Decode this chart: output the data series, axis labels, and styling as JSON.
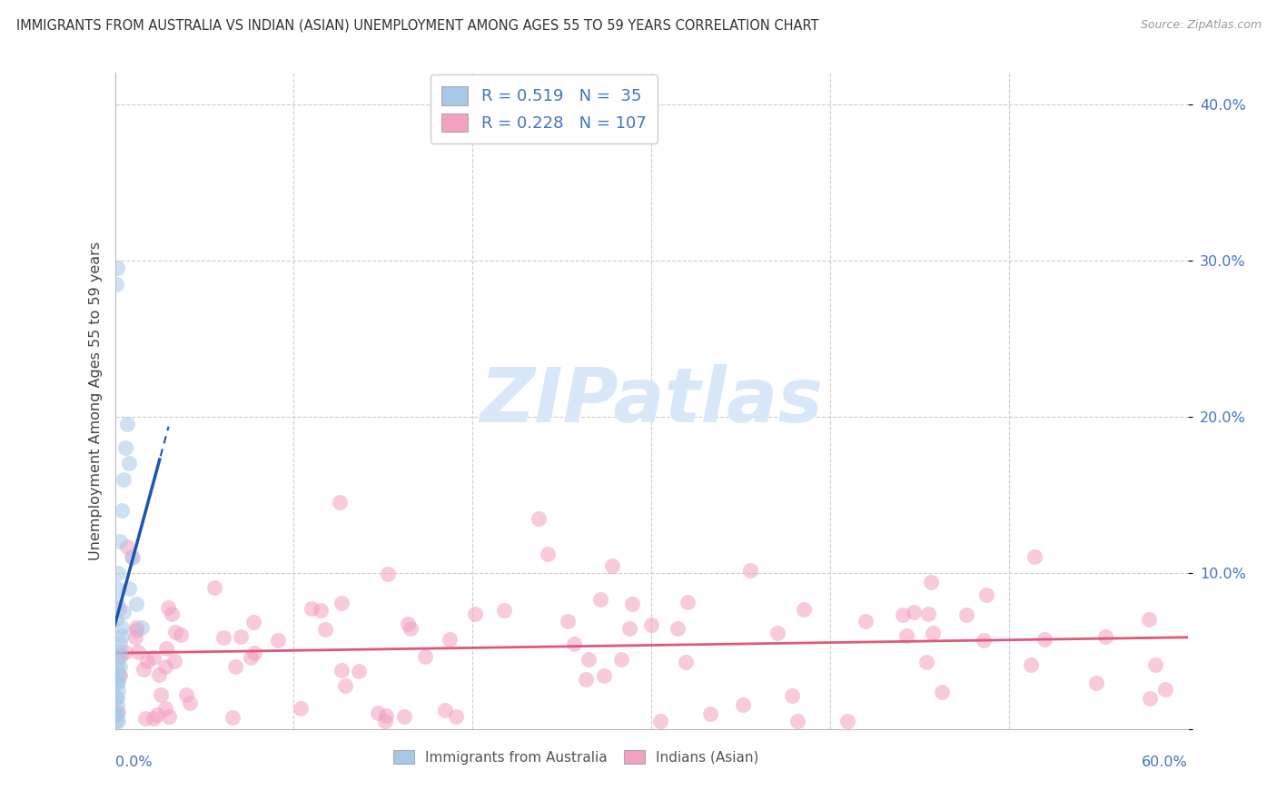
{
  "title": "IMMIGRANTS FROM AUSTRALIA VS INDIAN (ASIAN) UNEMPLOYMENT AMONG AGES 55 TO 59 YEARS CORRELATION CHART",
  "source": "Source: ZipAtlas.com",
  "ylabel": "Unemployment Among Ages 55 to 59 years",
  "legend1_R": "0.519",
  "legend1_N": "35",
  "legend2_R": "0.228",
  "legend2_N": "107",
  "blue_scatter_color": "#a8c8e8",
  "pink_scatter_color": "#f4a0c0",
  "blue_line_color": "#1a56b0",
  "pink_line_color": "#e05878",
  "tick_color": "#4472c4",
  "title_color": "#333333",
  "watermark_color": "#d8e8f8",
  "background": "#ffffff",
  "xlim": [
    0.0,
    0.6
  ],
  "ylim": [
    0.0,
    0.42
  ],
  "yticks": [
    0.0,
    0.1,
    0.2,
    0.3,
    0.4
  ]
}
